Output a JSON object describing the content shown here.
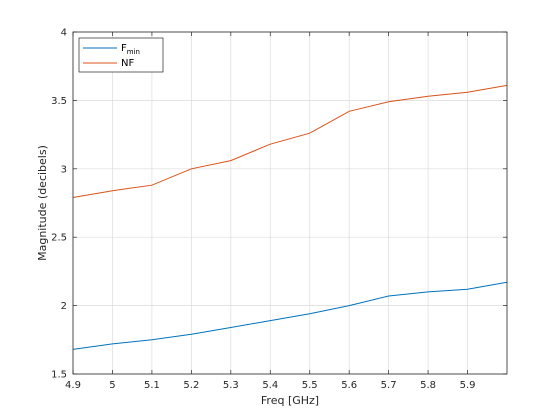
{
  "chart_data": {
    "type": "line",
    "xlabel": "Freq [GHz]",
    "ylabel": "Magnitude (decibels)",
    "xlim": [
      4.9,
      6.0
    ],
    "ylim": [
      1.5,
      4
    ],
    "x_ticks": [
      "4.9",
      "5",
      "5.1",
      "5.2",
      "5.3",
      "5.4",
      "5.5",
      "5.6",
      "5.7",
      "5.8",
      "5.9"
    ],
    "y_ticks": [
      "1.5",
      "2",
      "2.5",
      "3",
      "3.5",
      "4"
    ],
    "grid": true,
    "legend_position": "top-left",
    "x": [
      4.9,
      5.0,
      5.1,
      5.2,
      5.3,
      5.4,
      5.5,
      5.6,
      5.7,
      5.8,
      5.9,
      6.0
    ],
    "series": [
      {
        "name": "F",
        "name_subscript": "min",
        "color": "#0072BD",
        "values": [
          1.68,
          1.72,
          1.75,
          1.79,
          1.84,
          1.89,
          1.94,
          2.0,
          2.07,
          2.1,
          2.12,
          2.17
        ]
      },
      {
        "name": "NF",
        "color": "#D95319",
        "values": [
          2.79,
          2.84,
          2.88,
          3.0,
          3.06,
          3.18,
          3.26,
          3.42,
          3.49,
          3.53,
          3.56,
          3.61
        ]
      }
    ]
  }
}
